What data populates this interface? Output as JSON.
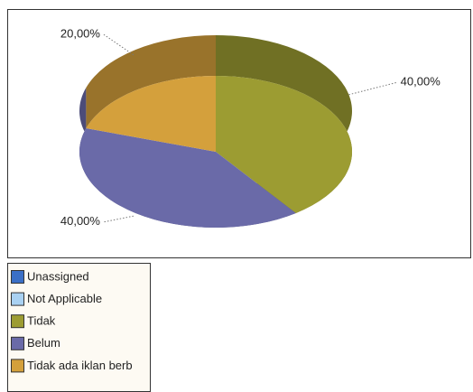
{
  "chart_data": {
    "type": "pie3d",
    "categories": [
      "Unassigned",
      "Not Applicable",
      "Tidak",
      "Belum",
      "Tidak ada iklan berb"
    ],
    "values": [
      0,
      0,
      40,
      40,
      20
    ],
    "value_labels": [
      null,
      null,
      "40,00%",
      "40,00%",
      "20,00%"
    ],
    "colors": [
      "#3b6fc6",
      "#a9d1f2",
      "#9c9c32",
      "#6a6aa8",
      "#d4a03c"
    ]
  }
}
